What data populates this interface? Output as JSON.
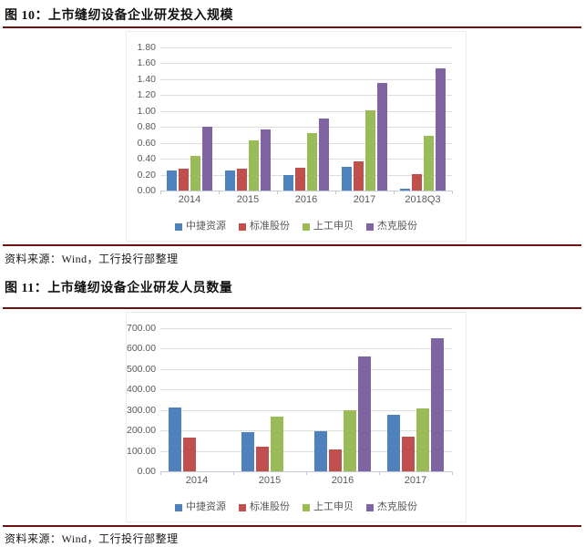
{
  "page": {
    "figures": [
      {
        "title": "图 10：上市缝纫设备企业研发投入规模",
        "source": "资料来源：Wind，工行投行部整理"
      },
      {
        "title": "图 11：上市缝纫设备企业研发人员数量",
        "source": "资料来源：Wind，工行投行部整理"
      }
    ]
  },
  "colors": {
    "rule_line": "#6F1111",
    "gridline": "#DDDDDD",
    "axis_line": "#C3CAD5",
    "axis_text": "#595959",
    "series_blue": "#4F81BD",
    "series_red": "#C0504D",
    "series_green": "#9BBB59",
    "series_purple": "#8064A2"
  },
  "chart_data": [
    {
      "type": "bar",
      "title": "上市缝纫设备企业研发投入规模",
      "categories": [
        "2014",
        "2015",
        "2016",
        "2017",
        "2018Q3"
      ],
      "series": [
        {
          "name": "中捷资源",
          "color": "#4F81BD",
          "values": [
            0.25,
            0.25,
            0.19,
            0.3,
            0.02
          ]
        },
        {
          "name": "标准股份",
          "color": "#C0504D",
          "values": [
            0.27,
            0.27,
            0.29,
            0.37,
            0.21
          ]
        },
        {
          "name": "上工申贝",
          "color": "#9BBB59",
          "values": [
            0.44,
            0.63,
            0.72,
            1.01,
            0.69
          ]
        },
        {
          "name": "杰克股份",
          "color": "#8064A2",
          "values": [
            0.8,
            0.77,
            0.9,
            1.35,
            1.54
          ]
        }
      ],
      "xlabel": "",
      "ylabel": "",
      "ylim": [
        0,
        1.8
      ],
      "ystep": 0.2,
      "y_decimals": 2,
      "grid": true,
      "legend_position": "bottom"
    },
    {
      "type": "bar",
      "title": "上市缝纫设备企业研发人员数量",
      "categories": [
        "2014",
        "2015",
        "2016",
        "2017"
      ],
      "series": [
        {
          "name": "中捷资源",
          "color": "#4F81BD",
          "values": [
            310,
            190,
            195,
            278
          ]
        },
        {
          "name": "标准股份",
          "color": "#C0504D",
          "values": [
            165,
            120,
            105,
            168
          ]
        },
        {
          "name": "上工申贝",
          "color": "#9BBB59",
          "values": [
            0,
            268,
            298,
            307
          ]
        },
        {
          "name": "杰克股份",
          "color": "#8064A2",
          "values": [
            0,
            0,
            560,
            650
          ]
        }
      ],
      "xlabel": "",
      "ylabel": "",
      "ylim": [
        0,
        700
      ],
      "ystep": 100,
      "y_decimals": 2,
      "grid": true,
      "legend_position": "bottom"
    }
  ]
}
